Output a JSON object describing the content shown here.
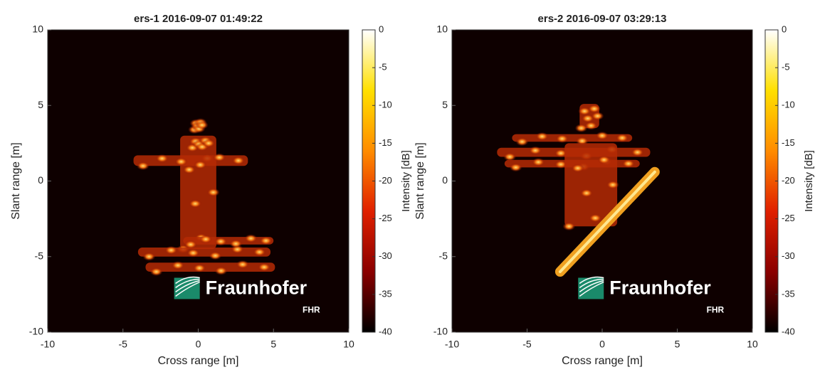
{
  "chart_data": [
    {
      "type": "image",
      "title": "ers-1 2016-09-07 01:49:22",
      "xlabel": "Cross range [m]",
      "ylabel": "Slant range [m]",
      "xlim": [
        -10,
        10
      ],
      "ylim": [
        -10,
        10
      ],
      "xticks": [
        -10,
        -5,
        0,
        5,
        10
      ],
      "yticks": [
        -10,
        -5,
        0,
        5,
        10
      ],
      "colorbar": {
        "label": "Intensity [dB]",
        "lim": [
          -40,
          0
        ],
        "ticks": [
          0,
          -5,
          -10,
          -15,
          -20,
          -25,
          -30,
          -35,
          -40
        ],
        "colormap": [
          "#000000",
          "#8b0000",
          "#e02000",
          "#ff8c00",
          "#ffe000",
          "#ffffff"
        ]
      },
      "logo": {
        "name": "Fraunhofer",
        "sub": "FHR"
      }
    },
    {
      "type": "image",
      "title": "ers-2 2016-09-07 03:29:13",
      "xlabel": "Cross range [m]",
      "ylabel": "Slant range [m]",
      "xlim": [
        -10,
        10
      ],
      "ylim": [
        -10,
        10
      ],
      "xticks": [
        -10,
        -5,
        0,
        5,
        10
      ],
      "yticks": [
        -10,
        -5,
        0,
        5,
        10
      ],
      "colorbar": {
        "label": "Intensity [dB]",
        "lim": [
          -40,
          0
        ],
        "ticks": [
          0,
          -5,
          -10,
          -15,
          -20,
          -25,
          -30,
          -35,
          -40
        ],
        "colormap": [
          "#000000",
          "#8b0000",
          "#e02000",
          "#ff8c00",
          "#ffe000",
          "#ffffff"
        ]
      },
      "logo": {
        "name": "Fraunhofer",
        "sub": "FHR"
      }
    }
  ]
}
